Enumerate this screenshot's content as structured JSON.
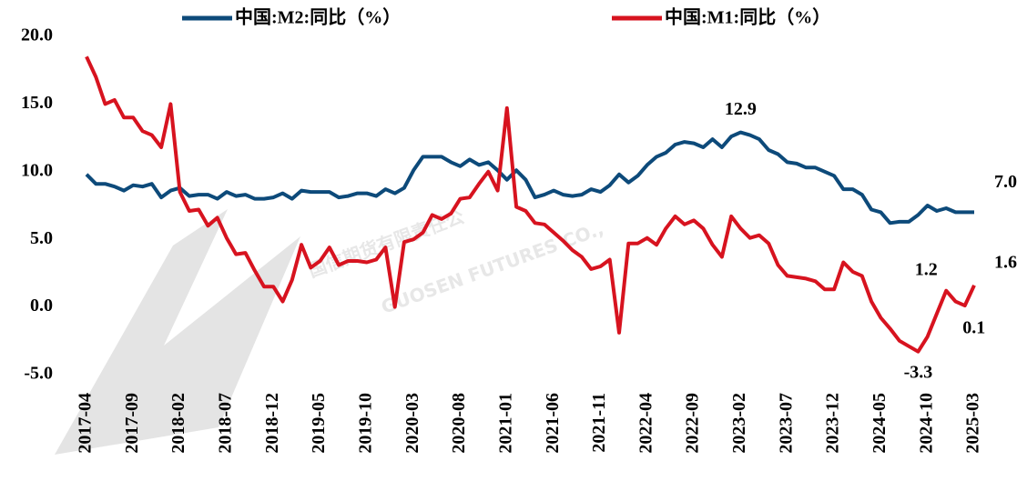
{
  "chart_data": {
    "type": "line",
    "watermark": [
      "国信期货有限责任公",
      "GUOSEN FUTURES CO.,"
    ],
    "categories": [
      "2017-04",
      null,
      null,
      null,
      null,
      "2017-09",
      null,
      null,
      null,
      null,
      "2018-02",
      null,
      null,
      null,
      null,
      "2018-07",
      null,
      null,
      null,
      null,
      "2018-12",
      null,
      null,
      null,
      null,
      "2019-05",
      null,
      null,
      null,
      null,
      "2019-10",
      null,
      null,
      null,
      null,
      "2020-03",
      null,
      null,
      null,
      null,
      "2020-08",
      null,
      null,
      null,
      null,
      "2021-01",
      null,
      null,
      null,
      null,
      "2021-06",
      null,
      null,
      null,
      null,
      "2021-11",
      null,
      null,
      null,
      null,
      "2022-04",
      null,
      null,
      null,
      null,
      "2022-09",
      null,
      null,
      null,
      null,
      "2023-02",
      null,
      null,
      null,
      null,
      "2023-07",
      null,
      null,
      null,
      null,
      "2023-12",
      null,
      null,
      null,
      null,
      "2024-05",
      null,
      null,
      null,
      null,
      "2024-10",
      null,
      null,
      null,
      null,
      "2025-03"
    ],
    "series": [
      {
        "name": "中国:M2:同比（%）",
        "color": "#0d4a7a",
        "values": [
          9.8,
          9.1,
          9.1,
          8.9,
          8.6,
          9.0,
          8.9,
          9.1,
          8.1,
          8.6,
          8.8,
          8.2,
          8.3,
          8.3,
          8.0,
          8.5,
          8.2,
          8.3,
          8.0,
          8.0,
          8.1,
          8.4,
          8.0,
          8.6,
          8.5,
          8.5,
          8.5,
          8.1,
          8.2,
          8.4,
          8.4,
          8.2,
          8.7,
          8.4,
          8.8,
          10.1,
          11.1,
          11.1,
          11.1,
          10.7,
          10.4,
          10.9,
          10.5,
          10.7,
          10.1,
          9.4,
          10.1,
          9.4,
          8.1,
          8.3,
          8.6,
          8.3,
          8.2,
          8.3,
          8.7,
          8.5,
          9.0,
          9.8,
          9.2,
          9.7,
          10.5,
          11.1,
          11.4,
          12.0,
          12.2,
          12.1,
          11.8,
          12.4,
          11.8,
          12.6,
          12.9,
          12.7,
          12.4,
          11.6,
          11.3,
          10.7,
          10.6,
          10.3,
          10.3,
          10.0,
          9.7,
          8.7,
          8.7,
          8.3,
          7.2,
          7.0,
          6.2,
          6.3,
          6.3,
          6.8,
          7.5,
          7.1,
          7.3,
          7.0,
          7.0,
          7.0
        ],
        "value_labels": [
          null,
          null,
          null,
          null,
          null,
          null,
          null,
          null,
          null,
          null,
          null,
          null,
          null,
          null,
          null,
          null,
          null,
          null,
          null,
          null,
          null,
          null,
          null,
          null,
          null,
          null,
          null,
          null,
          null,
          null,
          null,
          null,
          null,
          null,
          null,
          null,
          null,
          null,
          null,
          null,
          null,
          null,
          null,
          null,
          null,
          null,
          null,
          null,
          null,
          null,
          null,
          null,
          null,
          null,
          null,
          null,
          null,
          null,
          null,
          null,
          null,
          null,
          null,
          null,
          null,
          null,
          null,
          null,
          null,
          null,
          "12.9",
          null,
          null,
          null,
          null,
          null,
          null,
          null,
          null,
          null,
          null,
          null,
          null,
          null,
          null,
          null,
          null,
          null,
          null,
          null,
          null,
          null,
          null,
          null,
          null,
          "7.0"
        ]
      },
      {
        "name": "中国:M1:同比（%）",
        "color": "#d7131f",
        "values": [
          18.5,
          17.0,
          15.0,
          15.3,
          14.0,
          14.0,
          13.0,
          12.7,
          11.8,
          15.0,
          8.5,
          7.1,
          7.2,
          6.0,
          6.6,
          5.1,
          3.9,
          4.0,
          2.7,
          1.5,
          1.5,
          0.4,
          2.0,
          4.6,
          2.9,
          3.4,
          4.4,
          3.1,
          3.4,
          3.4,
          3.3,
          3.5,
          4.4,
          0.0,
          4.8,
          5.0,
          5.5,
          6.8,
          6.5,
          6.9,
          8.0,
          8.1,
          9.1,
          10.0,
          8.6,
          14.7,
          7.4,
          7.1,
          6.2,
          6.1,
          5.5,
          4.9,
          4.2,
          3.7,
          2.8,
          3.0,
          3.5,
          -1.9,
          4.7,
          4.7,
          5.1,
          4.6,
          5.8,
          6.7,
          6.1,
          6.4,
          5.8,
          4.6,
          3.7,
          6.7,
          5.8,
          5.1,
          5.3,
          4.7,
          3.1,
          2.3,
          2.2,
          2.1,
          1.9,
          1.3,
          1.3,
          3.3,
          2.6,
          2.3,
          0.4,
          -0.8,
          -1.6,
          -2.5,
          -2.9,
          -3.3,
          -2.2,
          -0.5,
          1.2,
          0.4,
          0.1,
          1.6
        ],
        "value_labels": [
          null,
          null,
          null,
          null,
          null,
          null,
          null,
          null,
          null,
          null,
          null,
          null,
          null,
          null,
          null,
          null,
          null,
          null,
          null,
          null,
          null,
          null,
          null,
          null,
          null,
          null,
          null,
          null,
          null,
          null,
          null,
          null,
          null,
          null,
          null,
          null,
          null,
          null,
          null,
          null,
          null,
          null,
          null,
          null,
          null,
          null,
          null,
          null,
          null,
          null,
          null,
          null,
          null,
          null,
          null,
          null,
          null,
          null,
          null,
          null,
          null,
          null,
          null,
          null,
          null,
          null,
          null,
          null,
          null,
          null,
          null,
          null,
          null,
          null,
          null,
          null,
          null,
          null,
          null,
          null,
          null,
          null,
          null,
          null,
          null,
          null,
          null,
          null,
          null,
          "-3.3",
          null,
          null,
          "1.2",
          null,
          "0.1",
          "1.6"
        ]
      }
    ],
    "ylim": [
      -5,
      20
    ],
    "yticks": [
      {
        "value": 20,
        "label": "20.0"
      },
      {
        "value": 15,
        "label": "15.0"
      },
      {
        "value": 10,
        "label": "10.0"
      },
      {
        "value": 5,
        "label": "5.0"
      },
      {
        "value": 0,
        "label": "0.0"
      },
      {
        "value": -5,
        "label": "-5.0"
      }
    ],
    "grid": false,
    "legend": "top"
  }
}
